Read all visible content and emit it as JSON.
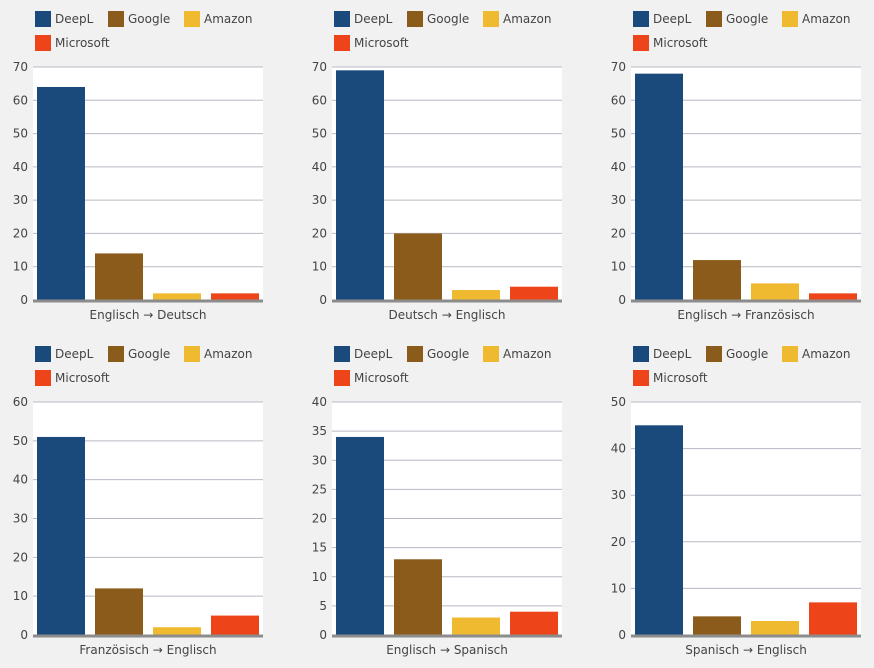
{
  "colors": {
    "DeepL": "#1a4a7c",
    "Google": "#8b5b1b",
    "Amazon": "#f0ba30",
    "Microsoft": "#ee4419",
    "gridline": "#b9b9c4",
    "axis": "#8c8c8c",
    "plot_bg": "#ffffff"
  },
  "chart_data": [
    {
      "type": "bar",
      "legend": [
        "DeepL",
        "Google",
        "Amazon",
        "Microsoft"
      ],
      "categories": [
        "DeepL",
        "Google",
        "Amazon",
        "Microsoft"
      ],
      "values": [
        64,
        14,
        2,
        2
      ],
      "xlabel": "Englisch → Deutsch",
      "ylim": [
        0,
        70
      ],
      "yticks": [
        0,
        10,
        20,
        30,
        40,
        50,
        60,
        70
      ]
    },
    {
      "type": "bar",
      "legend": [
        "DeepL",
        "Google",
        "Amazon",
        "Microsoft"
      ],
      "categories": [
        "DeepL",
        "Google",
        "Amazon",
        "Microsoft"
      ],
      "values": [
        69,
        20,
        3,
        4
      ],
      "xlabel": "Deutsch → Englisch",
      "ylim": [
        0,
        70
      ],
      "yticks": [
        0,
        10,
        20,
        30,
        40,
        50,
        60,
        70
      ]
    },
    {
      "type": "bar",
      "legend": [
        "DeepL",
        "Google",
        "Amazon",
        "Microsoft"
      ],
      "categories": [
        "DeepL",
        "Google",
        "Amazon",
        "Microsoft"
      ],
      "values": [
        68,
        12,
        5,
        2
      ],
      "xlabel": "Englisch → Französisch",
      "ylim": [
        0,
        70
      ],
      "yticks": [
        0,
        10,
        20,
        30,
        40,
        50,
        60,
        70
      ]
    },
    {
      "type": "bar",
      "legend": [
        "DeepL",
        "Google",
        "Amazon",
        "Microsoft"
      ],
      "categories": [
        "DeepL",
        "Google",
        "Amazon",
        "Microsoft"
      ],
      "values": [
        51,
        12,
        2,
        5
      ],
      "xlabel": "Französisch → Englisch",
      "ylim": [
        0,
        60
      ],
      "yticks": [
        0,
        10,
        20,
        30,
        40,
        50,
        60
      ]
    },
    {
      "type": "bar",
      "legend": [
        "DeepL",
        "Google",
        "Amazon",
        "Microsoft"
      ],
      "categories": [
        "DeepL",
        "Google",
        "Amazon",
        "Microsoft"
      ],
      "values": [
        34,
        13,
        3,
        4
      ],
      "xlabel": "Englisch → Spanisch",
      "ylim": [
        0,
        40
      ],
      "yticks": [
        0,
        5,
        10,
        15,
        20,
        25,
        30,
        35,
        40
      ]
    },
    {
      "type": "bar",
      "legend": [
        "DeepL",
        "Google",
        "Amazon",
        "Microsoft"
      ],
      "categories": [
        "DeepL",
        "Google",
        "Amazon",
        "Microsoft"
      ],
      "values": [
        45,
        4,
        3,
        7
      ],
      "xlabel": "Spanisch → Englisch",
      "ylim": [
        0,
        50
      ],
      "yticks": [
        0,
        10,
        20,
        30,
        40,
        50
      ]
    }
  ]
}
